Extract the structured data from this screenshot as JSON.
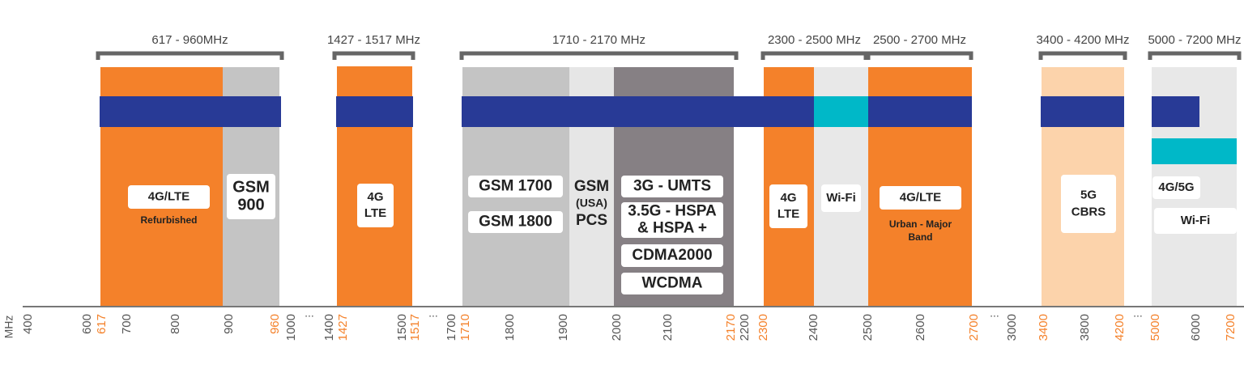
{
  "brackets": [
    "617 - 960MHz",
    "1427 - 1517 MHz",
    "1710 - 2170 MHz",
    "2300 - 2500 MHz",
    "2500 - 2700 MHz",
    "3400 - 4200 MHz",
    "5000 - 7200 MHz"
  ],
  "labels": [
    {
      "lines": [
        "4G/LTE"
      ]
    },
    {
      "lines": [
        "Refurbished"
      ]
    },
    {
      "lines": [
        "GSM",
        "900"
      ]
    },
    {
      "lines": [
        "4G",
        "LTE"
      ]
    },
    {
      "lines": [
        "GSM 1700"
      ]
    },
    {
      "lines": [
        "GSM 1800"
      ]
    },
    {
      "lines": [
        "GSM",
        "(USA)",
        "PCS"
      ]
    },
    {
      "lines": [
        "3G - UMTS"
      ]
    },
    {
      "lines": [
        "3.5G - HSPA",
        "& HSPA +"
      ]
    },
    {
      "lines": [
        "CDMA2000"
      ]
    },
    {
      "lines": [
        "WCDMA"
      ]
    },
    {
      "lines": [
        "4G",
        "LTE"
      ]
    },
    {
      "lines": [
        "Wi-Fi"
      ]
    },
    {
      "lines": [
        "4G/LTE"
      ]
    },
    {
      "lines": [
        "Urban - Major",
        "Band"
      ]
    },
    {
      "lines": [
        "5G",
        "CBRS"
      ]
    },
    {
      "lines": [
        "4G/5G"
      ]
    },
    {
      "lines": [
        "Wi-Fi"
      ]
    }
  ],
  "axis": {
    "unit": "MHz",
    "ticks": [
      {
        "text": "400",
        "kind": "normal"
      },
      {
        "text": "600",
        "kind": "normal"
      },
      {
        "text": "617",
        "kind": "accent"
      },
      {
        "text": "700",
        "kind": "normal"
      },
      {
        "text": "800",
        "kind": "normal"
      },
      {
        "text": "900",
        "kind": "normal"
      },
      {
        "text": "960",
        "kind": "accent"
      },
      {
        "text": "1000",
        "kind": "normal"
      },
      {
        "text": "...",
        "kind": "gap"
      },
      {
        "text": "1400",
        "kind": "normal"
      },
      {
        "text": "1427",
        "kind": "accent"
      },
      {
        "text": "1500",
        "kind": "normal"
      },
      {
        "text": "1517",
        "kind": "accent"
      },
      {
        "text": "...",
        "kind": "gap"
      },
      {
        "text": "1700",
        "kind": "normal"
      },
      {
        "text": "1710",
        "kind": "accent"
      },
      {
        "text": "1800",
        "kind": "normal"
      },
      {
        "text": "1900",
        "kind": "normal"
      },
      {
        "text": "2000",
        "kind": "normal"
      },
      {
        "text": "2100",
        "kind": "normal"
      },
      {
        "text": "2170",
        "kind": "accent"
      },
      {
        "text": "2200",
        "kind": "normal"
      },
      {
        "text": "2300",
        "kind": "accent"
      },
      {
        "text": "2400",
        "kind": "normal"
      },
      {
        "text": "2500",
        "kind": "normal"
      },
      {
        "text": "2600",
        "kind": "normal"
      },
      {
        "text": "2700",
        "kind": "accent"
      },
      {
        "text": "...",
        "kind": "gap"
      },
      {
        "text": "3000",
        "kind": "normal"
      },
      {
        "text": "3400",
        "kind": "accent"
      },
      {
        "text": "3800",
        "kind": "normal"
      },
      {
        "text": "4200",
        "kind": "accent"
      },
      {
        "text": "...",
        "kind": "gap"
      },
      {
        "text": "5000",
        "kind": "accent"
      },
      {
        "text": "6000",
        "kind": "normal"
      },
      {
        "text": "7200",
        "kind": "accent"
      }
    ]
  }
}
